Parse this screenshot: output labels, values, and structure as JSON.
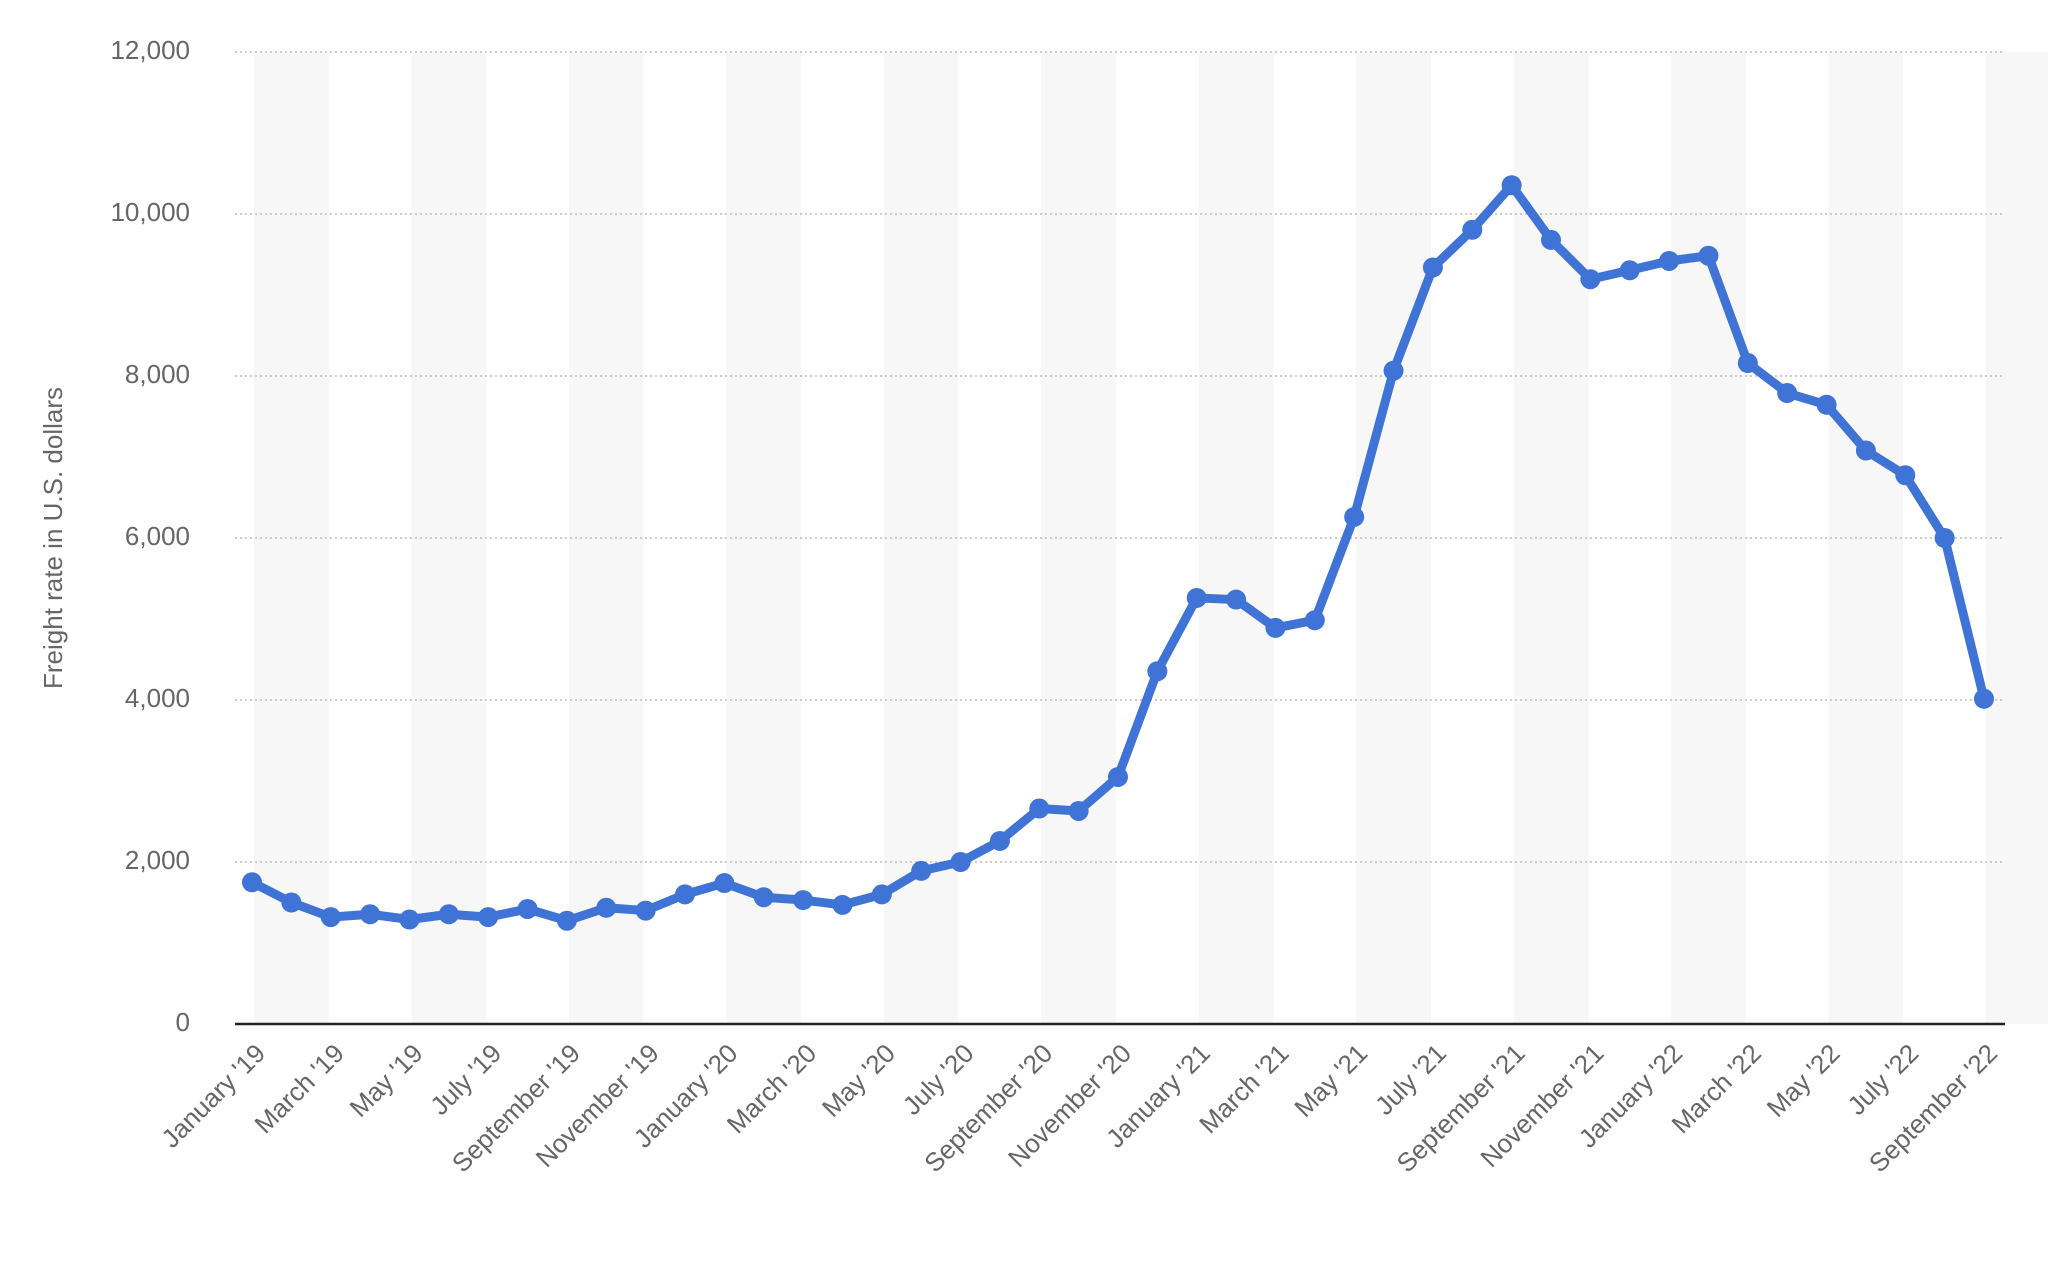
{
  "chart_data": {
    "type": "line",
    "y_label": "Freight rate in U.S. dollars",
    "categories": [
      "January '19",
      null,
      "March '19",
      null,
      "May '19",
      null,
      "July '19",
      null,
      "September '19",
      null,
      "November '19",
      null,
      "January '20",
      null,
      "March '20",
      null,
      "May '20",
      null,
      "July '20",
      null,
      "September '20",
      null,
      "November '20",
      null,
      "January '21",
      null,
      "March '21",
      null,
      "May '21",
      null,
      "July '21",
      null,
      "September '21",
      null,
      "November '21",
      null,
      "January '22",
      null,
      "March '22",
      null,
      "May '22",
      null,
      "July '22",
      null,
      "September '22"
    ],
    "values": [
      1750,
      1500,
      1320,
      1355,
      1290,
      1355,
      1320,
      1420,
      1275,
      1435,
      1400,
      1600,
      1740,
      1565,
      1530,
      1470,
      1600,
      1890,
      2000,
      2260,
      2660,
      2630,
      3050,
      4355,
      5260,
      5240,
      4890,
      4985,
      6260,
      8065,
      9340,
      9805,
      10355,
      9680,
      9195,
      9305,
      9420,
      9485,
      8160,
      7790,
      7645,
      7080,
      6775,
      6000,
      4015
    ],
    "color": "#3f74d6",
    "ylim": [
      0,
      12000
    ],
    "yticks": [
      0,
      {
        "value": 2000,
        "label": "2,000"
      },
      {
        "value": 4000,
        "label": "4,000"
      },
      {
        "value": 6000,
        "label": "6,000"
      },
      {
        "value": 8000,
        "label": "8,000"
      },
      {
        "value": 10000,
        "label": "10,000"
      },
      {
        "value": 12000,
        "label": "12,000"
      }
    ],
    "grid": true
  }
}
